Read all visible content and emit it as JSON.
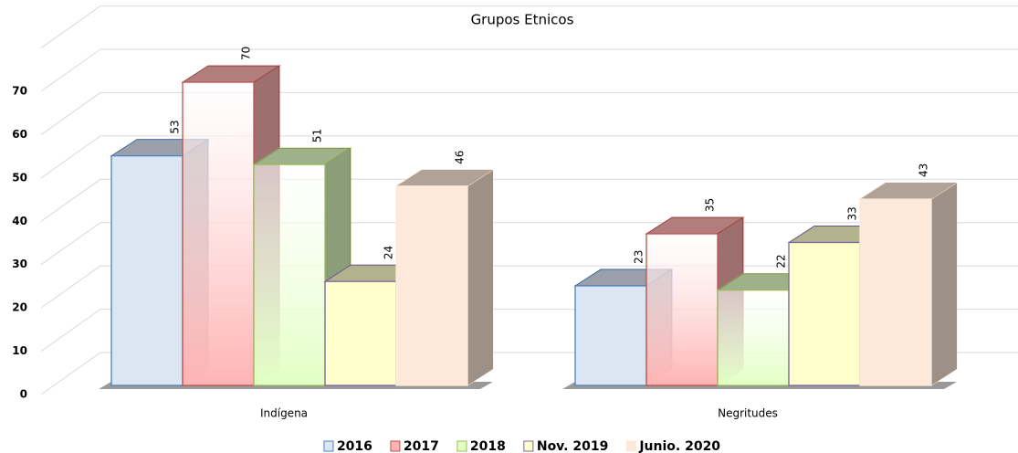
{
  "chart_data": {
    "type": "bar3d",
    "title": "Grupos Etnicos",
    "categories": [
      "Indígena",
      "Negritudes"
    ],
    "series": [
      {
        "name": "2016",
        "color": "#dce6f2",
        "stroke": "#4f81bd",
        "values": [
          53,
          23
        ]
      },
      {
        "name": "2017",
        "color": "#ffb3b3",
        "stroke": "#c0504d",
        "values": [
          70,
          35
        ]
      },
      {
        "name": "2018",
        "color": "#e2ffc4",
        "stroke": "#9bbb59",
        "values": [
          51,
          22
        ]
      },
      {
        "name": "Nov. 2019",
        "color": "#ffffcc",
        "stroke": "#8064a2",
        "values": [
          24,
          33
        ]
      },
      {
        "name": "Junio. 2020",
        "color": "#fde9d9",
        "stroke": "#fde9d9",
        "values": [
          46,
          43
        ]
      }
    ],
    "ylim": [
      0,
      80
    ],
    "yticks": [
      0,
      10,
      20,
      30,
      40,
      50,
      60,
      70
    ],
    "grid": true,
    "legend": "bottom"
  }
}
